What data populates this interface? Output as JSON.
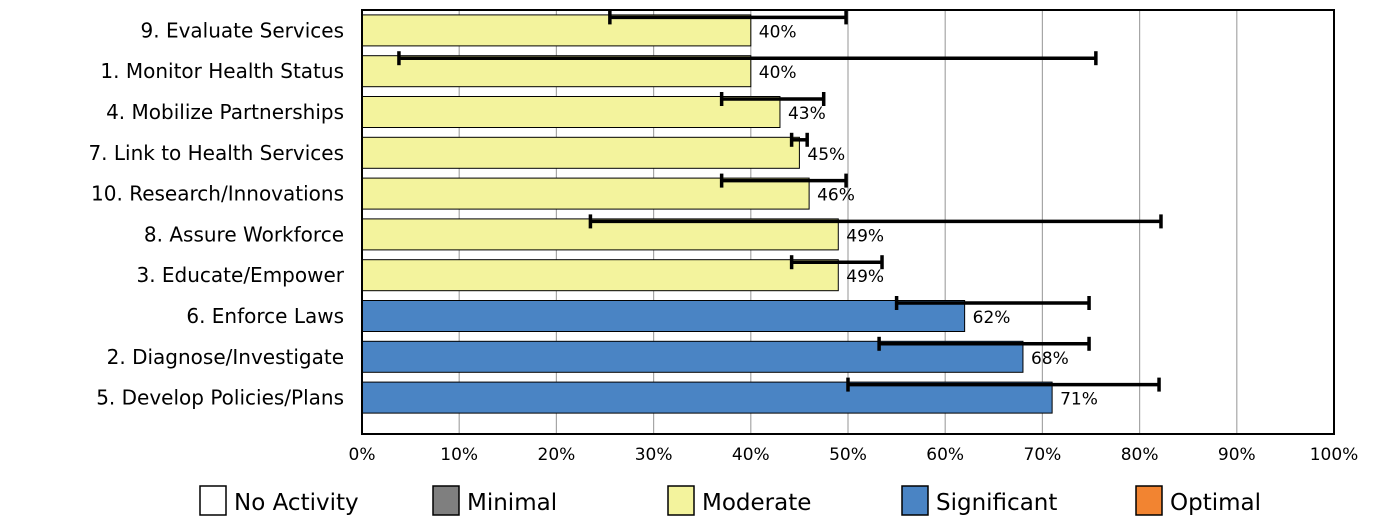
{
  "chart_data": {
    "type": "bar",
    "orientation": "horizontal",
    "title": "",
    "xlabel": "",
    "ylabel": "",
    "xlim": [
      0,
      100
    ],
    "grid": "vertical",
    "legend_position": "bottom",
    "x_tick_labels": [
      "0%",
      "10%",
      "20%",
      "30%",
      "40%",
      "50%",
      "60%",
      "70%",
      "80%",
      "90%",
      "100%"
    ],
    "categories": [
      "9.  Evaluate Services",
      "1.  Monitor Health Status",
      "4.  Mobilize Partnerships",
      "7.  Link to Health Services",
      "10.  Research/Innovations",
      "8.  Assure Workforce",
      "3.  Educate/Empower",
      "6.  Enforce Laws",
      "2.  Diagnose/Investigate",
      "5.  Develop Policies/Plans"
    ],
    "values": [
      40,
      40,
      43,
      45,
      46,
      49,
      49,
      62,
      68,
      71
    ],
    "data_labels": [
      "40%",
      "40%",
      "43%",
      "45%",
      "46%",
      "49%",
      "49%",
      "62%",
      "68%",
      "71%"
    ],
    "levels": [
      "Moderate",
      "Moderate",
      "Moderate",
      "Moderate",
      "Moderate",
      "Moderate",
      "Moderate",
      "Significant",
      "Significant",
      "Significant"
    ],
    "error_bars": [
      [
        25.5,
        49.8
      ],
      [
        3.8,
        75.5
      ],
      [
        37,
        47.5
      ],
      [
        44.2,
        45.8
      ],
      [
        37,
        49.8
      ],
      [
        23.5,
        82.2
      ],
      [
        44.2,
        53.5
      ],
      [
        55,
        74.8
      ],
      [
        53.2,
        74.8
      ],
      [
        50,
        82
      ]
    ],
    "legend": [
      {
        "label": "No Activity",
        "color": "#ffffff"
      },
      {
        "label": "Minimal",
        "color": "#7f7f7f"
      },
      {
        "label": "Moderate",
        "color": "#f3f39d"
      },
      {
        "label": "Significant",
        "color": "#4a84c4"
      },
      {
        "label": "Optimal",
        "color": "#f28431"
      }
    ]
  }
}
